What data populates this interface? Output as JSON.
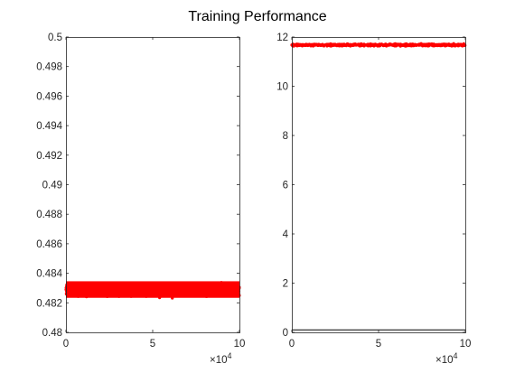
{
  "title": "Training Performance",
  "colors": {
    "marker": "#ff0000",
    "axis": "#262626",
    "line": "#000000"
  },
  "chart_data": [
    {
      "type": "scatter",
      "x_multiplier_label": "×10",
      "x_multiplier_exp": "4",
      "xlim": [
        0,
        10
      ],
      "ylim": [
        0.48,
        0.5
      ],
      "x_ticks": [
        0,
        5,
        10
      ],
      "x_tick_labels": [
        "0",
        "5",
        "10"
      ],
      "y_ticks": [
        0.48,
        0.482,
        0.484,
        0.486,
        0.488,
        0.49,
        0.492,
        0.494,
        0.496,
        0.498,
        0.5
      ],
      "y_tick_labels": [
        "0.48",
        "0.482",
        "0.484",
        "0.486",
        "0.488",
        "0.49",
        "0.492",
        "0.494",
        "0.496",
        "0.498",
        "0.5"
      ],
      "series": [
        {
          "marker_color": "#ff0000",
          "x_range": [
            0,
            10
          ],
          "y_center": 0.4829,
          "y_spread": 0.0007,
          "y_outlier_min": 0.4817,
          "y_outlier_max": 0.4839
        }
      ]
    },
    {
      "type": "scatter",
      "x_multiplier_label": "×10",
      "x_multiplier_exp": "4",
      "xlim": [
        0,
        10
      ],
      "ylim": [
        0,
        12
      ],
      "x_ticks": [
        0,
        5,
        10
      ],
      "x_tick_labels": [
        "0",
        "5",
        "10"
      ],
      "y_ticks": [
        0,
        2,
        4,
        6,
        8,
        10,
        12
      ],
      "y_tick_labels": [
        "0",
        "2",
        "4",
        "6",
        "8",
        "10",
        "12"
      ],
      "series": [
        {
          "marker_color": "#ff0000",
          "x_range": [
            0,
            10
          ],
          "y_center": 11.68,
          "y_spread": 0.08
        },
        {
          "line_color": "#000000",
          "x_range": [
            0,
            10
          ],
          "y_value": 0.1
        }
      ]
    }
  ]
}
